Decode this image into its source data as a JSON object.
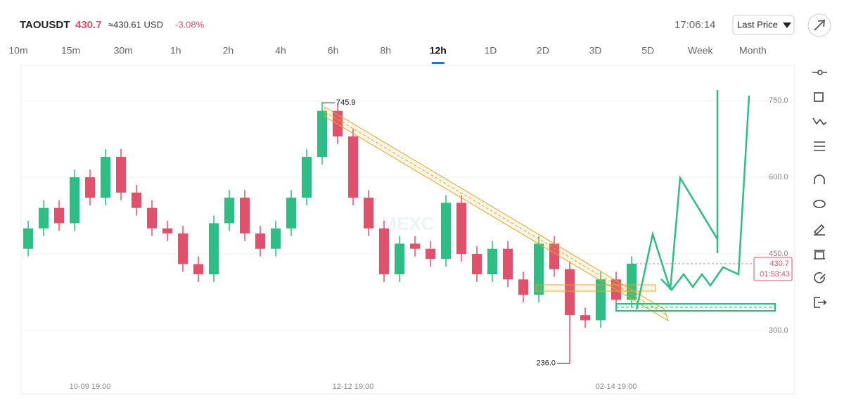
{
  "header": {
    "symbol": "TAOUSDT",
    "price": "430.7",
    "approx": "≈430.61 USD",
    "change": "-3.08%",
    "time": "17:06:14",
    "price_type": "Last Price"
  },
  "tabs": [
    "10m",
    "15m",
    "30m",
    "1h",
    "2h",
    "4h",
    "6h",
    "8h",
    "12h",
    "1D",
    "2D",
    "3D",
    "5D",
    "Week",
    "Month"
  ],
  "active_tab": "12h",
  "watermark": "MEXC",
  "chart_data": {
    "type": "candlestick",
    "categories": [
      null,
      null,
      null,
      null,
      "10-09 19:00",
      null,
      null,
      null,
      null,
      null,
      null,
      null,
      null,
      null,
      null,
      null,
      null,
      null,
      null,
      null,
      null,
      "12-12 19:00",
      null,
      null,
      null,
      null,
      null,
      null,
      null,
      null,
      null,
      null,
      null,
      null,
      null,
      null,
      null,
      null,
      "02-14 19:00",
      null
    ],
    "open": [
      460,
      500,
      540,
      510,
      600,
      560,
      640,
      570,
      540,
      500,
      490,
      430,
      410,
      510,
      560,
      490,
      460,
      500,
      560,
      640,
      730,
      680,
      560,
      500,
      410,
      470,
      460,
      440,
      550,
      450,
      410,
      460,
      400,
      370,
      470,
      420,
      330,
      320,
      400,
      360
    ],
    "high": [
      515,
      555,
      555,
      615,
      615,
      655,
      655,
      585,
      555,
      515,
      505,
      445,
      525,
      575,
      575,
      505,
      515,
      575,
      655,
      745.9,
      745,
      695,
      575,
      515,
      485,
      485,
      475,
      565,
      565,
      465,
      475,
      475,
      415,
      485,
      485,
      435,
      345,
      415,
      415,
      445
    ],
    "low": [
      445,
      485,
      495,
      495,
      545,
      545,
      555,
      525,
      485,
      475,
      415,
      395,
      395,
      495,
      475,
      445,
      445,
      485,
      545,
      625,
      665,
      545,
      485,
      395,
      395,
      445,
      425,
      425,
      435,
      395,
      395,
      385,
      355,
      355,
      405,
      236,
      305,
      305,
      345,
      345
    ],
    "close": [
      500,
      540,
      510,
      600,
      560,
      640,
      570,
      540,
      500,
      490,
      430,
      410,
      510,
      560,
      490,
      460,
      500,
      560,
      640,
      730,
      680,
      560,
      500,
      410,
      470,
      460,
      440,
      550,
      450,
      410,
      460,
      400,
      370,
      470,
      420,
      330,
      320,
      400,
      360,
      430.7
    ],
    "up_color": "#2ebd85",
    "down_color": "#e0526b",
    "ylim": [
      176,
      819
    ],
    "yticks": [
      {
        "value": 300,
        "label": "300.0"
      },
      {
        "value": 450,
        "label": "450.0"
      },
      {
        "value": 600,
        "label": "600.0"
      },
      {
        "value": 750,
        "label": "750.0"
      }
    ],
    "grid": true,
    "annotations": [
      {
        "value": 745.9,
        "label": "745.9"
      },
      {
        "value": 236,
        "label": "236.0"
      }
    ],
    "last_price": {
      "value": 430.7,
      "label": "430.7",
      "countdown": "01:53:43"
    }
  }
}
